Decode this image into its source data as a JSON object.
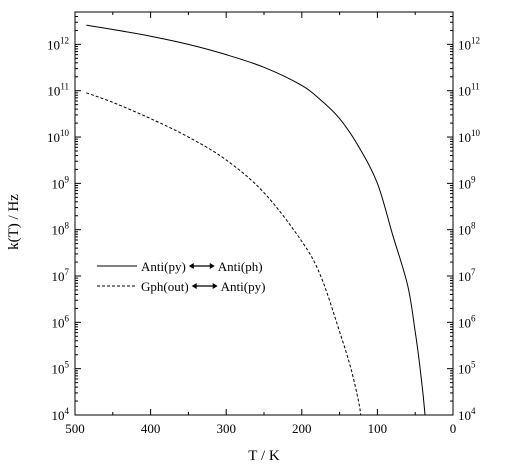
{
  "chart_data": {
    "type": "line",
    "xlabel": "T / K",
    "ylabel": "k(T) / Hz",
    "xlim": [
      500,
      0
    ],
    "ylim": [
      10000,
      5000000000000
    ],
    "yscale": "log",
    "x_ticks": [
      500,
      400,
      300,
      200,
      100,
      0
    ],
    "x_tick_labels": [
      "500",
      "400",
      "300",
      "200",
      "100",
      "0"
    ],
    "y_ticks": [
      {
        "base": "10",
        "exp": "4"
      },
      {
        "base": "10",
        "exp": "5"
      },
      {
        "base": "10",
        "exp": "6"
      },
      {
        "base": "10",
        "exp": "7"
      },
      {
        "base": "10",
        "exp": "8"
      },
      {
        "base": "10",
        "exp": "9"
      },
      {
        "base": "10",
        "exp": "10"
      },
      {
        "base": "10",
        "exp": "11"
      },
      {
        "base": "10",
        "exp": "12"
      }
    ],
    "right_axis_mirrored": true,
    "legend_position": "center-left",
    "legend": [
      {
        "left": "Anti(py)",
        "right": "Anti(ph)"
      },
      {
        "left": "Gph(out)",
        "right": "Anti(py)"
      }
    ],
    "series": [
      {
        "name": "Anti(py) ↔ Anti(ph)",
        "style": "solid",
        "x": [
          485,
          450,
          400,
          350,
          300,
          250,
          200,
          175,
          150,
          125,
          100,
          80,
          60,
          50,
          45,
          40,
          37
        ],
        "y": [
          2600000000000.0,
          2100000000000.0,
          1500000000000.0,
          1000000000000.0,
          600000000000.0,
          320000000000.0,
          130000000000.0,
          63000000000.0,
          25000000000.0,
          6300000000.0,
          1000000000.0,
          79000000.0,
          6300000.0,
          630000.0,
          160000.0,
          32000.0,
          10000.0
        ]
      },
      {
        "name": "Gph(out) ↔ Anti(py)",
        "style": "dashed",
        "x": [
          485,
          450,
          400,
          350,
          300,
          250,
          200,
          175,
          150,
          135,
          125,
          122
        ],
        "y": [
          90000000000.0,
          56000000000.0,
          25000000000.0,
          10000000000.0,
          3200000000.0,
          630000000.0,
          56000000.0,
          10000000.0,
          630000.0,
          100000.0,
          20000.0,
          10000.0
        ]
      }
    ]
  }
}
